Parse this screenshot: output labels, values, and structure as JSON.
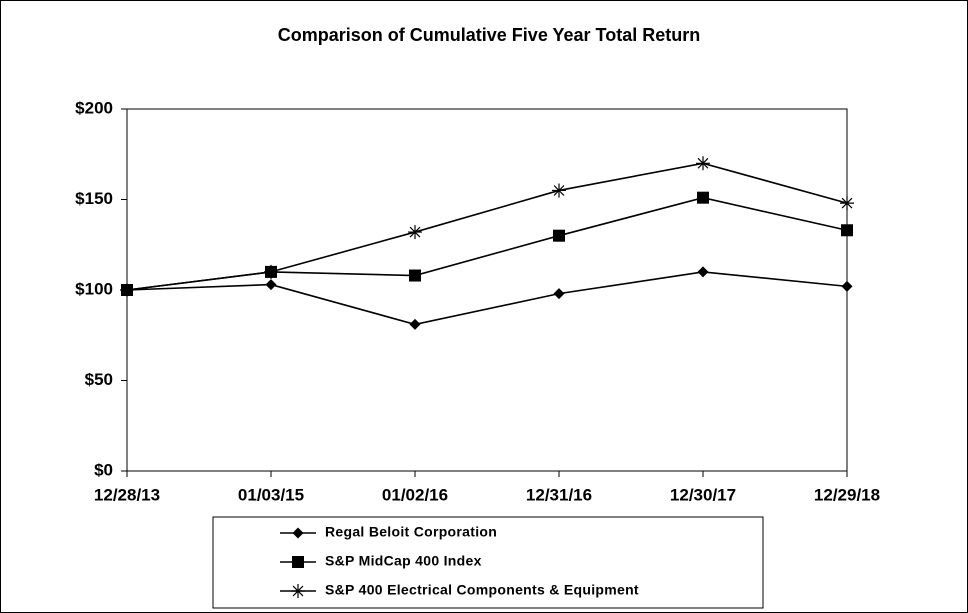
{
  "chart_data": {
    "type": "line",
    "title": "Comparison of Cumulative Five Year Total Return",
    "categories": [
      "12/28/13",
      "01/03/15",
      "01/02/16",
      "12/31/16",
      "12/30/17",
      "12/29/18"
    ],
    "series": [
      {
        "name": "Regal Beloit Corporation",
        "color": "#000000",
        "marker": "diamond",
        "values": [
          100,
          103,
          81,
          98,
          110,
          102
        ]
      },
      {
        "name": "S&P MidCap 400 Index",
        "color": "#000000",
        "marker": "square",
        "values": [
          100,
          110,
          108,
          130,
          151,
          133
        ]
      },
      {
        "name": "S&P 400 Electrical Components & Equipment",
        "color": "#000000",
        "marker": "asterisk",
        "values": [
          100,
          110,
          132,
          155,
          170,
          148
        ]
      }
    ],
    "ylim": [
      0,
      200
    ],
    "yticks": [
      {
        "value": 0,
        "label": "$0"
      },
      {
        "value": 50,
        "label": "$50"
      },
      {
        "value": 100,
        "label": "$100"
      },
      {
        "value": 150,
        "label": "$150"
      },
      {
        "value": 200,
        "label": "$200"
      }
    ],
    "grid": false,
    "legend": "bottom"
  }
}
